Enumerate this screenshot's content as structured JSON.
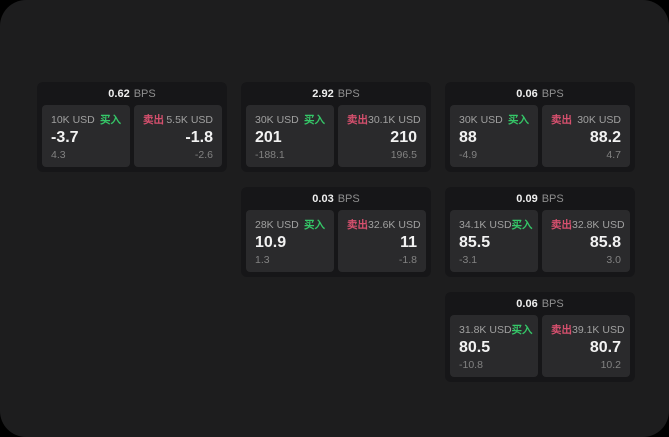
{
  "page": {
    "background": "#1d1d1e",
    "outer_background": "#000000",
    "card_background": "#161618",
    "panel_background": "#2a2a2c",
    "buy_color": "#35c768",
    "sell_color": "#d6506e"
  },
  "labels": {
    "buy": "买入",
    "sell": "卖出",
    "bps_suffix": "BPS"
  },
  "cards": [
    {
      "bps": "0.62",
      "buy": {
        "size": "10K USD",
        "price": "-3.7",
        "sub": "4.3"
      },
      "sell": {
        "size": "5.5K USD",
        "price": "-1.8",
        "sub": "-2.6"
      }
    },
    {
      "bps": "2.92",
      "buy": {
        "size": "30K USD",
        "price": "201",
        "sub": "-188.1"
      },
      "sell": {
        "size": "30.1K USD",
        "price": "210",
        "sub": "196.5"
      }
    },
    {
      "bps": "0.06",
      "buy": {
        "size": "30K USD",
        "price": "88",
        "sub": "-4.9"
      },
      "sell": {
        "size": "30K USD",
        "price": "88.2",
        "sub": "4.7"
      }
    },
    {
      "bps": "0.03",
      "buy": {
        "size": "28K USD",
        "price": "10.9",
        "sub": "1.3"
      },
      "sell": {
        "size": "32.6K USD",
        "price": "11",
        "sub": "-1.8"
      }
    },
    {
      "bps": "0.09",
      "buy": {
        "size": "34.1K USD",
        "price": "85.5",
        "sub": "-3.1"
      },
      "sell": {
        "size": "32.8K USD",
        "price": "85.8",
        "sub": "3.0"
      }
    },
    {
      "bps": "0.06",
      "buy": {
        "size": "31.8K USD",
        "price": "80.5",
        "sub": "-10.8"
      },
      "sell": {
        "size": "39.1K USD",
        "price": "80.7",
        "sub": "10.2"
      }
    }
  ]
}
